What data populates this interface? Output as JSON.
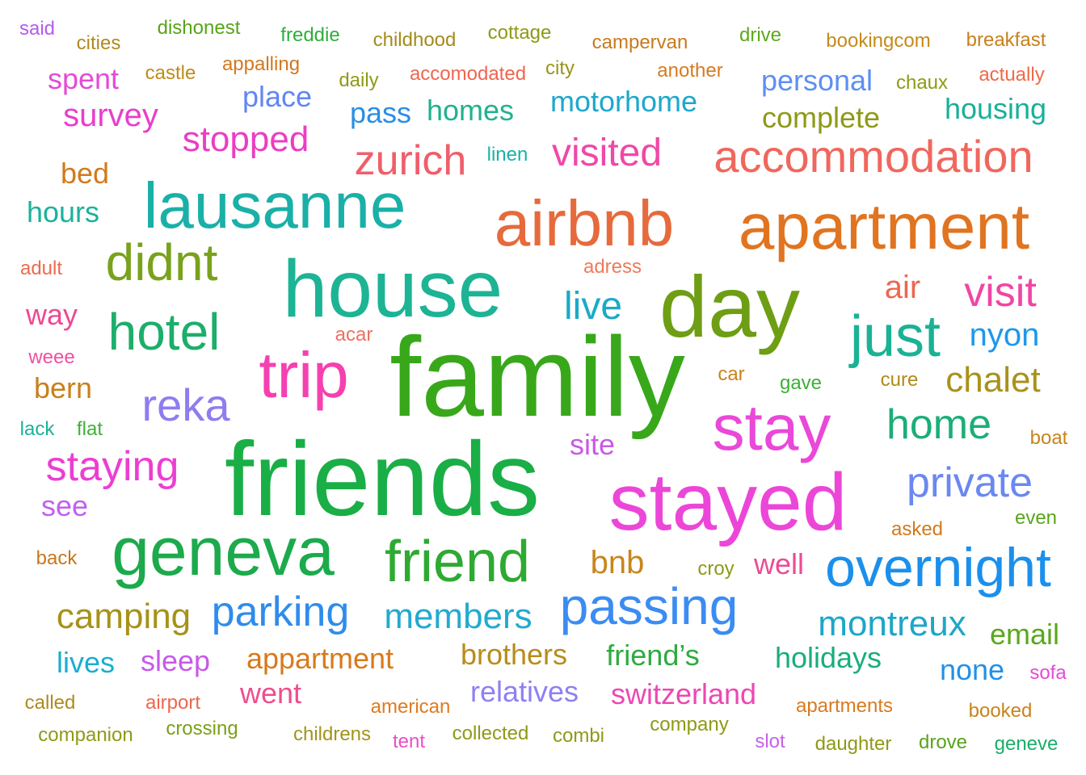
{
  "words": [
    {
      "text": "said",
      "color": "#b55bf0"
    },
    {
      "text": "cities",
      "color": "#b08a1e"
    },
    {
      "text": "dishonest",
      "color": "#58a41a"
    },
    {
      "text": "freddie",
      "color": "#2eae3c"
    },
    {
      "text": "childhood",
      "color": "#a38c1c"
    },
    {
      "text": "cottage",
      "color": "#8e9a16"
    },
    {
      "text": "campervan",
      "color": "#c87a1e"
    },
    {
      "text": "drive",
      "color": "#5ea81c"
    },
    {
      "text": "bookingcom",
      "color": "#c68a1a"
    },
    {
      "text": "breakfast",
      "color": "#c8801c"
    },
    {
      "text": "castle",
      "color": "#c08a1c"
    },
    {
      "text": "appalling",
      "color": "#d2781e"
    },
    {
      "text": "daily",
      "color": "#8e9a16"
    },
    {
      "text": "accomodated",
      "color": "#ee6650"
    },
    {
      "text": "city",
      "color": "#9a9418"
    },
    {
      "text": "another",
      "color": "#d87a20"
    },
    {
      "text": "chaux",
      "color": "#8e9a16"
    },
    {
      "text": "actually",
      "color": "#ee6a4a"
    },
    {
      "text": "spent",
      "color": "#e44bd6"
    },
    {
      "text": "place",
      "color": "#6186f4"
    },
    {
      "text": "personal",
      "color": "#5d8ff3"
    },
    {
      "text": "survey",
      "color": "#e83ecd"
    },
    {
      "text": "pass",
      "color": "#2a8ee6"
    },
    {
      "text": "homes",
      "color": "#20b28e"
    },
    {
      "text": "motorhome",
      "color": "#1ca8cc"
    },
    {
      "text": "complete",
      "color": "#8e9a16"
    },
    {
      "text": "housing",
      "color": "#18b09a"
    },
    {
      "text": "stopped",
      "color": "#ea3ec3"
    },
    {
      "text": "zurich",
      "color": "#ef5e6a"
    },
    {
      "text": "visited",
      "color": "#f048a8"
    },
    {
      "text": "linen",
      "color": "#18b2a6"
    },
    {
      "text": "accommodation",
      "color": "#f0675d"
    },
    {
      "text": "bed",
      "color": "#d27a1c"
    },
    {
      "text": "lausanne",
      "color": "#1ab0a8"
    },
    {
      "text": "airbnb",
      "color": "#e66a3c"
    },
    {
      "text": "apartment",
      "color": "#e17420"
    },
    {
      "text": "hours",
      "color": "#1cb29c"
    },
    {
      "text": "didnt",
      "color": "#79a21c"
    },
    {
      "text": "house",
      "color": "#1cb494"
    },
    {
      "text": "day",
      "color": "#6e9e14"
    },
    {
      "text": "adult",
      "color": "#ec6a4e"
    },
    {
      "text": "adress",
      "color": "#ee7a5a"
    },
    {
      "text": "air",
      "color": "#ec6850"
    },
    {
      "text": "visit",
      "color": "#f046a4"
    },
    {
      "text": "live",
      "color": "#1aaac8"
    },
    {
      "text": "hotel",
      "color": "#1cae6a"
    },
    {
      "text": "way",
      "color": "#ef4892"
    },
    {
      "text": "just",
      "color": "#1ab296"
    },
    {
      "text": "nyon",
      "color": "#1e98ea"
    },
    {
      "text": "acar",
      "color": "#ee7060"
    },
    {
      "text": "weee",
      "color": "#f050a0"
    },
    {
      "text": "trip",
      "color": "#f640b0"
    },
    {
      "text": "family",
      "color": "#38a81a"
    },
    {
      "text": "car",
      "color": "#c8841c"
    },
    {
      "text": "gave",
      "color": "#3eb038"
    },
    {
      "text": "cure",
      "color": "#b08a18"
    },
    {
      "text": "chalet",
      "color": "#a8921c"
    },
    {
      "text": "bern",
      "color": "#c8801c"
    },
    {
      "text": "reka",
      "color": "#8e7df0"
    },
    {
      "text": "stay",
      "color": "#ea48d8"
    },
    {
      "text": "home",
      "color": "#1cae78"
    },
    {
      "text": "lack",
      "color": "#1ab29c"
    },
    {
      "text": "flat",
      "color": "#3eb03a"
    },
    {
      "text": "site",
      "color": "#c95ae6"
    },
    {
      "text": "boat",
      "color": "#c8841c"
    },
    {
      "text": "staying",
      "color": "#ec3ed2"
    },
    {
      "text": "friends",
      "color": "#1aae46"
    },
    {
      "text": "stayed",
      "color": "#ec46d8"
    },
    {
      "text": "private",
      "color": "#6a88f0"
    },
    {
      "text": "see",
      "color": "#c260f0"
    },
    {
      "text": "even",
      "color": "#5aa61c"
    },
    {
      "text": "asked",
      "color": "#d27a1c"
    },
    {
      "text": "geneva",
      "color": "#1caa4c"
    },
    {
      "text": "friend",
      "color": "#2eaa32"
    },
    {
      "text": "back",
      "color": "#c8781c"
    },
    {
      "text": "bnb",
      "color": "#c8861c"
    },
    {
      "text": "croy",
      "color": "#8e9a16"
    },
    {
      "text": "well",
      "color": "#ee4a94"
    },
    {
      "text": "overnight",
      "color": "#1a90ec"
    },
    {
      "text": "passing",
      "color": "#3b8cf2"
    },
    {
      "text": "parking",
      "color": "#2e8cec"
    },
    {
      "text": "camping",
      "color": "#a69218"
    },
    {
      "text": "members",
      "color": "#22aad0"
    },
    {
      "text": "montreux",
      "color": "#1ea6c8"
    },
    {
      "text": "email",
      "color": "#5aa81c"
    },
    {
      "text": "lives",
      "color": "#1aaed0"
    },
    {
      "text": "sleep",
      "color": "#c65aea"
    },
    {
      "text": "appartment",
      "color": "#d87a1c"
    },
    {
      "text": "brothers",
      "color": "#b88c1c"
    },
    {
      "text": "friend’s",
      "color": "#2eaa40"
    },
    {
      "text": "holidays",
      "color": "#1aae7a"
    },
    {
      "text": "none",
      "color": "#2090ea"
    },
    {
      "text": "sofa",
      "color": "#e44bd6"
    },
    {
      "text": "went",
      "color": "#ee4e8c"
    },
    {
      "text": "relatives",
      "color": "#8e80f2"
    },
    {
      "text": "switzerland",
      "color": "#ec48b4"
    },
    {
      "text": "called",
      "color": "#b08a1e"
    },
    {
      "text": "airport",
      "color": "#ee6650"
    },
    {
      "text": "american",
      "color": "#e07a20"
    },
    {
      "text": "apartments",
      "color": "#d87a20"
    },
    {
      "text": "booked",
      "color": "#c8841c"
    },
    {
      "text": "companion",
      "color": "#8e9a16"
    },
    {
      "text": "crossing",
      "color": "#7aa018"
    },
    {
      "text": "childrens",
      "color": "#a2941a"
    },
    {
      "text": "tent",
      "color": "#ea4ec8"
    },
    {
      "text": "collected",
      "color": "#8e9a16"
    },
    {
      "text": "combi",
      "color": "#8e9a16"
    },
    {
      "text": "company",
      "color": "#8e9a16"
    },
    {
      "text": "slot",
      "color": "#c860ea"
    },
    {
      "text": "daughter",
      "color": "#8e9a16"
    },
    {
      "text": "drove",
      "color": "#58a41a"
    },
    {
      "text": "geneve",
      "color": "#1aae6a"
    }
  ]
}
